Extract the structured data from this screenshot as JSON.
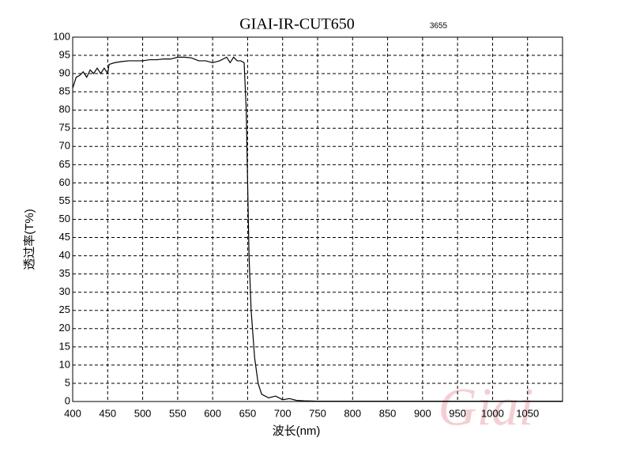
{
  "chart_data": {
    "type": "line",
    "title": "GIAI-IR-CUT650",
    "annotation": "3655",
    "watermark": "Giai",
    "x_label": "波长(nm)",
    "y_label": "透过率(T%)",
    "x": [
      400,
      405,
      410,
      415,
      420,
      425,
      430,
      435,
      440,
      445,
      450,
      452,
      460,
      470,
      480,
      490,
      500,
      510,
      520,
      530,
      540,
      550,
      560,
      570,
      580,
      590,
      600,
      610,
      620,
      625,
      630,
      635,
      640,
      645,
      648,
      650,
      652,
      655,
      660,
      665,
      670,
      680,
      690,
      700,
      710,
      720,
      730,
      750,
      800,
      900,
      1000,
      1100
    ],
    "values": [
      86,
      89,
      89.5,
      90.5,
      89,
      91,
      90,
      91.5,
      90,
      91.5,
      90,
      92.5,
      93,
      93.3,
      93.5,
      93.5,
      93.5,
      93.8,
      93.8,
      94,
      94,
      94.5,
      94.5,
      94.3,
      93.5,
      93.5,
      93,
      93.5,
      94.5,
      93,
      94.5,
      93.5,
      93.5,
      93,
      80,
      60,
      40,
      25,
      12,
      5,
      2,
      1,
      1.5,
      0.5,
      0.8,
      0.3,
      0.2,
      0.1,
      0.1,
      0.1,
      0.1,
      0.1
    ],
    "color": "#000000",
    "xlim": [
      400,
      1100
    ],
    "xticks": [
      400,
      450,
      500,
      550,
      600,
      650,
      700,
      750,
      800,
      850,
      900,
      950,
      1000,
      1050
    ],
    "ylim": [
      0,
      100
    ],
    "yticks": [
      0,
      5,
      10,
      15,
      20,
      25,
      30,
      35,
      40,
      45,
      50,
      55,
      60,
      65,
      70,
      75,
      80,
      85,
      90,
      95,
      100
    ],
    "grid": true
  }
}
